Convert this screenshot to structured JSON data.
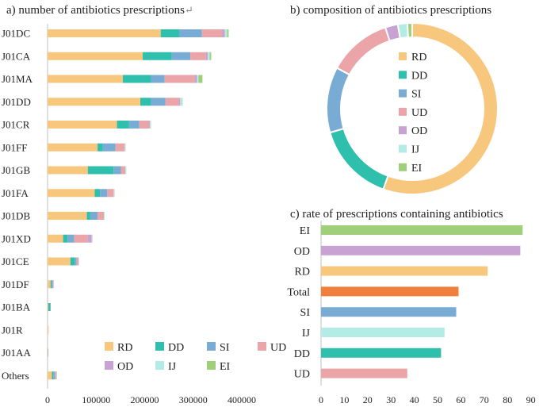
{
  "chart_data": [
    {
      "type": "bar",
      "orientation": "horizontal",
      "stacked": true,
      "title": "a) number of antibiotics prescriptions",
      "title_mark": "↵",
      "categories": [
        "J01DC",
        "J01CA",
        "J01MA",
        "J01DD",
        "J01CR",
        "J01FF",
        "J01GB",
        "J01FA",
        "J01DB",
        "J01XD",
        "J01CE",
        "J01DF",
        "J01BA",
        "J01R",
        "J01AA",
        "Others"
      ],
      "series": [
        {
          "name": "RD",
          "color": "#f8c77e",
          "values": [
            233000,
            196000,
            155000,
            191000,
            143000,
            103000,
            83000,
            97000,
            81000,
            32000,
            47000,
            6000,
            1500,
            1500,
            800,
            9000
          ]
        },
        {
          "name": "DD",
          "color": "#2ebfad",
          "values": [
            38000,
            60000,
            58000,
            22000,
            25000,
            11000,
            53000,
            11000,
            7000,
            9000,
            9000,
            2000,
            3500,
            0,
            500,
            3000
          ]
        },
        {
          "name": "SI",
          "color": "#79acd5",
          "values": [
            47000,
            38000,
            28000,
            30000,
            21000,
            26000,
            15000,
            15000,
            15000,
            14000,
            4000,
            3000,
            1500,
            0,
            500,
            3000
          ]
        },
        {
          "name": "UD",
          "color": "#eba4a7",
          "values": [
            42000,
            32000,
            62000,
            27000,
            20000,
            18000,
            8000,
            13000,
            12000,
            27000,
            4000,
            1500,
            0,
            500,
            0,
            2000
          ]
        },
        {
          "name": "OD",
          "color": "#c8a2d2",
          "values": [
            5000,
            4000,
            5000,
            3000,
            1500,
            1000,
            1000,
            500,
            1000,
            9000,
            0,
            0,
            0,
            0,
            0,
            1000
          ]
        },
        {
          "name": "IJ",
          "color": "#b3ebe6",
          "values": [
            5000,
            4000,
            3000,
            4000,
            2000,
            1000,
            1500,
            1000,
            1000,
            1000,
            1000,
            0,
            0,
            0,
            0,
            1000
          ]
        },
        {
          "name": "EI",
          "color": "#a0cf7a",
          "values": [
            3000,
            3000,
            8000,
            1000,
            500,
            500,
            500,
            500,
            500,
            500,
            0,
            0,
            0,
            0,
            0,
            500
          ]
        }
      ],
      "xlim": [
        0,
        450000
      ],
      "xticks": [
        "0",
        "100000",
        "200000",
        "300000",
        "400000"
      ],
      "legend": "bottom-right"
    },
    {
      "type": "pie",
      "subtype": "donut",
      "title": "b) composition of antibiotics prescriptions",
      "labels": [
        "RD",
        "DD",
        "SI",
        "UD",
        "OD",
        "IJ",
        "EI"
      ],
      "values": [
        55.5,
        15.0,
        12.4,
        12.0,
        2.4,
        1.8,
        0.9
      ],
      "colors": [
        "#f8c77e",
        "#2ebfad",
        "#79acd5",
        "#eba4a7",
        "#c8a2d2",
        "#b3ebe6",
        "#a0cf7a"
      ],
      "legend": "center"
    },
    {
      "type": "bar",
      "orientation": "horizontal",
      "title": "c) rate of prescriptions containing antibiotics",
      "categories": [
        "EI",
        "OD",
        "RD",
        "Total",
        "SI",
        "IJ",
        "DD",
        "UD"
      ],
      "values": [
        86.5,
        85.5,
        71.5,
        59,
        58,
        53,
        51.5,
        37
      ],
      "colors": [
        "#a0cf7a",
        "#c8a2d2",
        "#f8c77e",
        "#f07e3c",
        "#79acd5",
        "#b3ebe6",
        "#2ebfad",
        "#eba4a7"
      ],
      "xlim": [
        0,
        90
      ],
      "xticks": [
        "0",
        "10",
        "20",
        "30",
        "40",
        "50",
        "60",
        "70",
        "80",
        "90"
      ]
    }
  ]
}
